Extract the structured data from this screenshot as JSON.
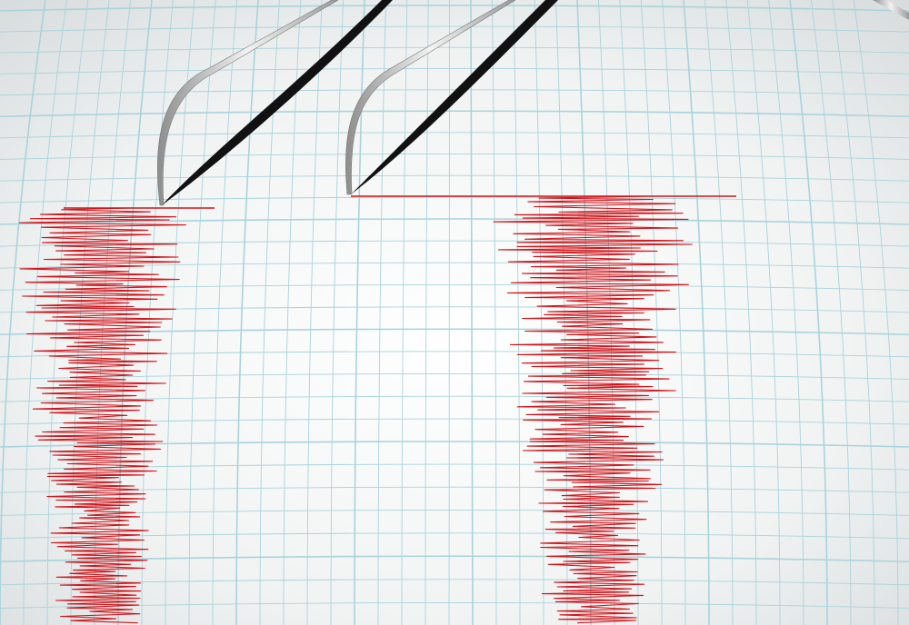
{
  "scene": {
    "subject": "seismograph",
    "colors": {
      "paper": "#f4f6f6",
      "paper_shadow": "#d9dede",
      "grid": "#a9d3dc",
      "trace": "#d0151b",
      "needle": "#b8b8b8",
      "needle_shadow": "#111111"
    },
    "traces": [
      {
        "name": "left-trace"
      },
      {
        "name": "right-trace"
      }
    ]
  }
}
